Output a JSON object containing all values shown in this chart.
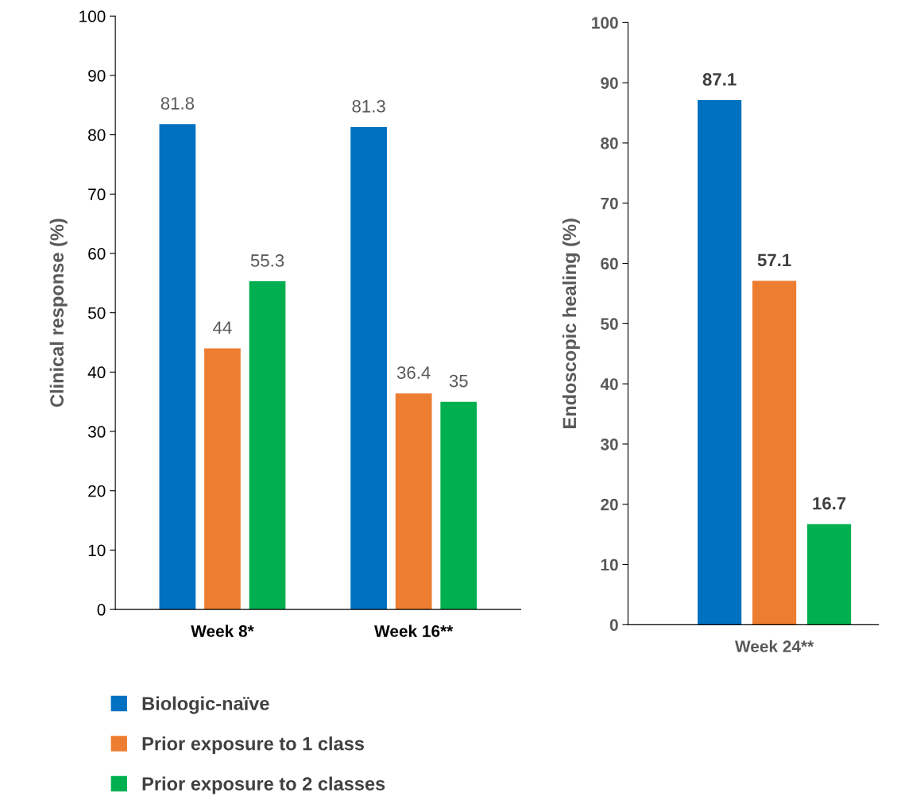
{
  "chart_data": [
    {
      "type": "bar",
      "ylabel": "Clinical response (%)",
      "categories": [
        "Week 8*",
        "Week 16**"
      ],
      "series": [
        {
          "name": "Biologic-naïve",
          "color": "#0070c0",
          "values": [
            81.8,
            81.3
          ]
        },
        {
          "name": "Prior exposure to 1 class",
          "color": "#ed7d31",
          "values": [
            44,
            36.4
          ]
        },
        {
          "name": "Prior exposure to 2 classes",
          "color": "#00b050",
          "values": [
            55.3,
            35
          ]
        }
      ],
      "ylim": [
        0,
        100
      ],
      "yticks": [
        0,
        10,
        20,
        30,
        40,
        50,
        60,
        70,
        80,
        90,
        100
      ],
      "data_labels": true,
      "legend": "bottom",
      "grid": false
    },
    {
      "type": "bar",
      "ylabel": "Endoscopic healing (%)",
      "categories": [
        null,
        "Week 24**",
        null
      ],
      "series": [
        {
          "colors": [
            "#0070c0",
            "#ed7d31",
            "#00b050"
          ],
          "values": [
            87.1,
            57.1,
            16.7
          ]
        }
      ],
      "ylim": [
        0,
        100
      ],
      "yticks": [
        0,
        10,
        20,
        30,
        40,
        50,
        60,
        70,
        80,
        90,
        100
      ],
      "data_labels": true,
      "grid": false
    }
  ]
}
